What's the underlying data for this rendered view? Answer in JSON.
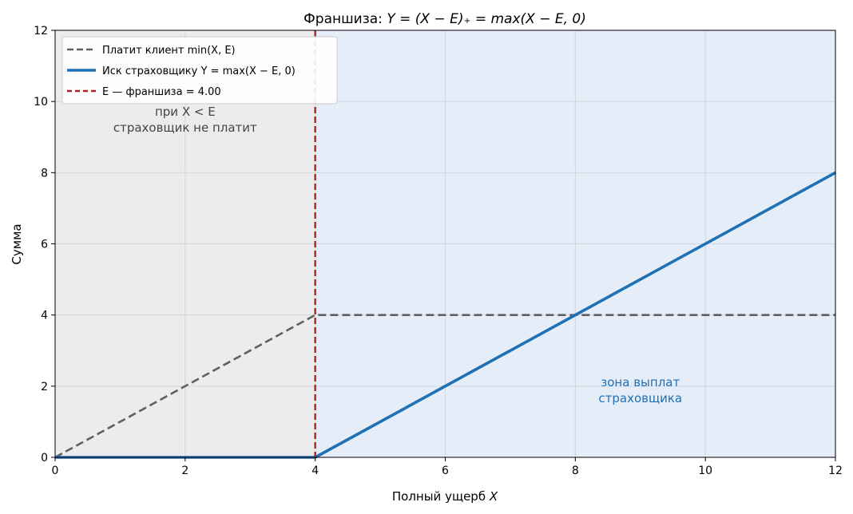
{
  "chart_data": {
    "type": "line",
    "title": {
      "prefix": "Франшиза: ",
      "formula": "Y = (X − E)₊ = max(X − E, 0)"
    },
    "xlabel": {
      "text": "Полный ущерб ",
      "var": "X"
    },
    "ylabel": "Сумма",
    "xlim": [
      0,
      12
    ],
    "ylim": [
      0,
      12
    ],
    "xticks": [
      0,
      2,
      4,
      6,
      8,
      10,
      12
    ],
    "yticks": [
      0,
      2,
      4,
      6,
      8,
      10,
      12
    ],
    "grid": true,
    "legend_position": "top-left",
    "deductible": 4.0,
    "regions": [
      {
        "from": 0,
        "to": 4,
        "color": "#ececec"
      },
      {
        "from": 4,
        "to": 12,
        "color": "#e4edf8"
      }
    ],
    "series": [
      {
        "name": "Платит клиент min(X, E)",
        "style": "dashed",
        "color": "#606060",
        "x": [
          0,
          4,
          12
        ],
        "y": [
          0,
          4,
          4
        ]
      },
      {
        "name": "Иск страховщику Y = max(X − E, 0)",
        "style": "solid",
        "color": "#2070b4",
        "x": [
          0,
          4,
          12
        ],
        "y": [
          0,
          0,
          8
        ]
      }
    ],
    "vline": {
      "name": "E — франшиза = 4.00",
      "x": 4,
      "color": "#b22222",
      "style": "dashed"
    },
    "annotations": [
      {
        "lines": [
          "при X < E",
          "страховщик не платит"
        ],
        "x": 2,
        "y": 9.6,
        "color": "#444444"
      },
      {
        "lines": [
          "зона выплат",
          "страховщика"
        ],
        "x": 9,
        "y": 2,
        "color": "#2070b4"
      }
    ]
  }
}
